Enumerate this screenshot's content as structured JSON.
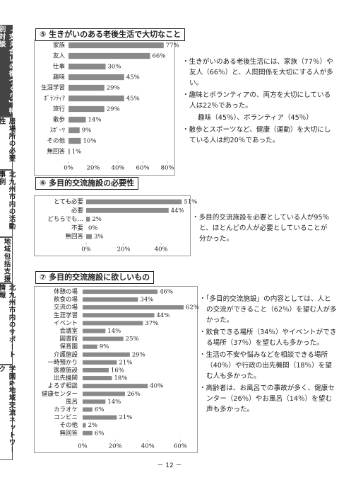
{
  "sidebar": {
    "tabs": [
      "「支え合いの街づくり」特別対談",
      "居場所の必要性",
      "北九州市内の活動事例",
      "地域包括支援",
      "北九州市内のサポート情報",
      "学園&地域交流ネットワーク"
    ]
  },
  "chart_data": [
    {
      "type": "hbar",
      "title": "⑤ 生きがいのある老後生活で大切なこと",
      "categories": [
        "家族",
        "友人",
        "仕事",
        "趣味",
        "生涯学習",
        "ﾎﾞﾗﾝﾃｨｱ",
        "旅行",
        "散歩",
        "ｽﾎﾟｰﾂ",
        "その他",
        "無回答"
      ],
      "values": [
        77,
        66,
        30,
        45,
        29,
        45,
        29,
        14,
        9,
        10,
        1
      ],
      "value_labels": [
        "77%",
        "66%",
        "30%",
        "45%",
        "29%",
        "45%",
        "29%",
        "14%",
        "9%",
        "10%",
        "1%"
      ],
      "color": "#8a8a8a",
      "xlim": [
        0,
        80
      ],
      "xticks": [
        {
          "value": 0,
          "label": "0%"
        },
        {
          "value": 20,
          "label": "20%"
        },
        {
          "value": 40,
          "label": "40%"
        },
        {
          "value": 60,
          "label": "60%"
        },
        {
          "value": 80,
          "label": "80%"
        }
      ],
      "grid": false,
      "notes": [
        "・生きがいのある老後生活には、家族（77％）や友人（66％）と、人間関係を大切にする人が多い。",
        "・趣味とボランティアの、両方を大切にしている人は22％であった。",
        "趣味（45％）、ボランティア（45％）",
        "・散歩とスポーツなど、健康（運動）を大切にしている人は約20％であった。"
      ]
    },
    {
      "type": "hbar",
      "title": "⑥ 多目的交流施設の必要性",
      "categories": [
        "とても必要",
        "必要",
        "どちらでも…",
        "不要",
        "無回答"
      ],
      "values": [
        51,
        44,
        2,
        0,
        3
      ],
      "value_labels": [
        "51%",
        "44%",
        "2%",
        "0%",
        "3%"
      ],
      "color": "#8a8a8a",
      "xlim": [
        0,
        52
      ],
      "xticks": [
        {
          "value": 0,
          "label": "0%"
        },
        {
          "value": 20,
          "label": "20%"
        },
        {
          "value": 40,
          "label": "40%"
        }
      ],
      "grid": false,
      "notes": [
        "・多目的交流施設を必要としている人が95％と、ほとんどの人が必要としていることが分かった。"
      ]
    },
    {
      "type": "hbar",
      "title": "⑦ 多目的交流施設に欲しいもの",
      "categories": [
        "休憩の場",
        "飲食の場",
        "交流の場",
        "生涯学習",
        "イベント",
        "会議室",
        "図書館",
        "保育園",
        "介護施設",
        "一時預かり",
        "医療施設",
        "出先機関",
        "よろず相談",
        "健康センター",
        "風呂",
        "カラオケ",
        "コンビニ",
        "その他",
        "無回答"
      ],
      "values": [
        46,
        34,
        62,
        44,
        37,
        14,
        25,
        9,
        29,
        21,
        16,
        18,
        40,
        26,
        14,
        6,
        21,
        2,
        6
      ],
      "value_labels": [
        "46%",
        "34%",
        "62%",
        "44%",
        "37%",
        "14%",
        "25%",
        "9%",
        "29%",
        "21%",
        "16%",
        "18%",
        "40%",
        "26%",
        "14%",
        "6%",
        "21%",
        "2%",
        "6%"
      ],
      "color": "#8a8a8a",
      "xlim": [
        0,
        62
      ],
      "xticks": [
        {
          "value": 0,
          "label": "0%"
        },
        {
          "value": 20,
          "label": "20%"
        },
        {
          "value": 40,
          "label": "40%"
        },
        {
          "value": 60,
          "label": "60%"
        }
      ],
      "grid": false,
      "notes": [
        "・「多目的交流施設」の内容としては、人との交流ができること（62％）を望む人が多かった。",
        "・飲食できる場所（34％）やイベントができる場所（37％）を望む人も多かった。",
        "・生活の不安や悩みなどを相談できる場所（40％）や行政の出先機関（18％）を望む人も多かった。",
        "・高齢者は、お風呂での事故が多く、健康センター（26％）やお風呂（14％）を望む声も多かった。"
      ]
    }
  ],
  "page_number": "－ 12 －"
}
